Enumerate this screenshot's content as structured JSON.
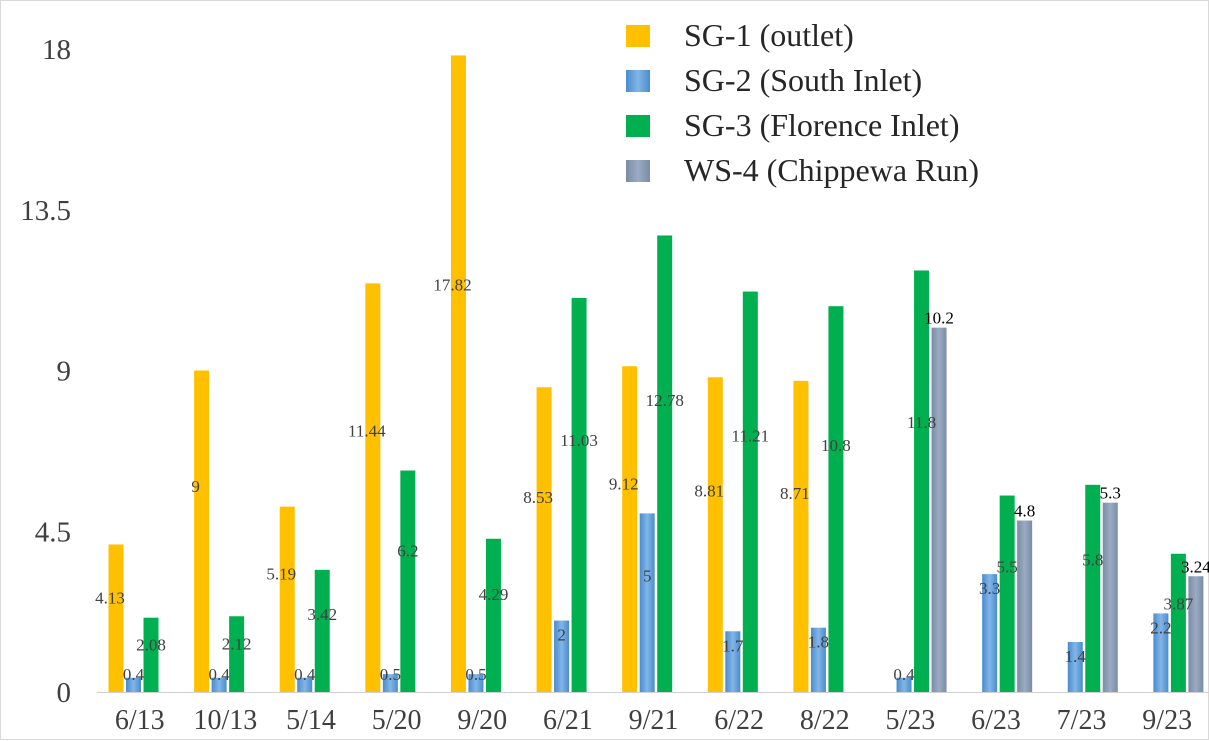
{
  "chart_data": {
    "type": "bar",
    "categories": [
      "6/13",
      "10/13",
      "5/14",
      "5/20",
      "9/20",
      "6/21",
      "9/21",
      "6/22",
      "8/22",
      "5/23",
      "6/23",
      "7/23",
      "9/23"
    ],
    "ylim": [
      0,
      18
    ],
    "yticks": [
      "0",
      "4.5",
      "9",
      "13.5",
      "18"
    ],
    "ytick_values": [
      0,
      4.5,
      9,
      13.5,
      18
    ],
    "grid": false,
    "legend_position": "top-right",
    "series": [
      {
        "name": "SG-1 (outlet)",
        "color": "#ffc000",
        "values": [
          4.13,
          9,
          5.19,
          11.44,
          17.82,
          8.53,
          9.12,
          8.81,
          8.71,
          null,
          null,
          null,
          null
        ],
        "labels": [
          "4.13",
          "9",
          "5.19",
          "11.44",
          "17.82",
          "8.53",
          "9.12",
          "8.81",
          "8.71",
          null,
          null,
          null,
          null
        ]
      },
      {
        "name": "SG-2 (South Inlet)",
        "color": "#5b9bd5",
        "values": [
          0.4,
          0.4,
          0.4,
          0.5,
          0.5,
          2,
          5,
          1.7,
          1.8,
          0.4,
          3.3,
          1.4,
          2.2
        ],
        "labels": [
          "0.4",
          "0.4",
          "0.4",
          "0.5",
          "0.5",
          "2",
          "5",
          "1.7",
          "1.8",
          "0.4",
          "3.3",
          "1.4",
          "2.2"
        ]
      },
      {
        "name": "SG-3 (Florence Inlet)",
        "color": "#00b050",
        "values": [
          2.08,
          2.12,
          3.42,
          6.2,
          4.29,
          11.03,
          12.78,
          11.21,
          10.8,
          11.8,
          5.5,
          5.8,
          3.87
        ],
        "labels": [
          "2.08",
          "2.12",
          "3.42",
          "6.2",
          "4.29",
          "11.03",
          "12.78",
          "11.21",
          "10.8",
          "11.8",
          "5.5",
          "5.8",
          "3.87"
        ]
      },
      {
        "name": "WS-4 (Chippewa Run)",
        "color": "#8497b0",
        "values": [
          null,
          null,
          null,
          null,
          null,
          null,
          null,
          null,
          null,
          10.2,
          4.8,
          5.3,
          3.24
        ],
        "labels": [
          null,
          null,
          null,
          null,
          null,
          null,
          null,
          null,
          null,
          "10.2",
          "4.8",
          "5.3",
          "3.24"
        ]
      }
    ]
  }
}
